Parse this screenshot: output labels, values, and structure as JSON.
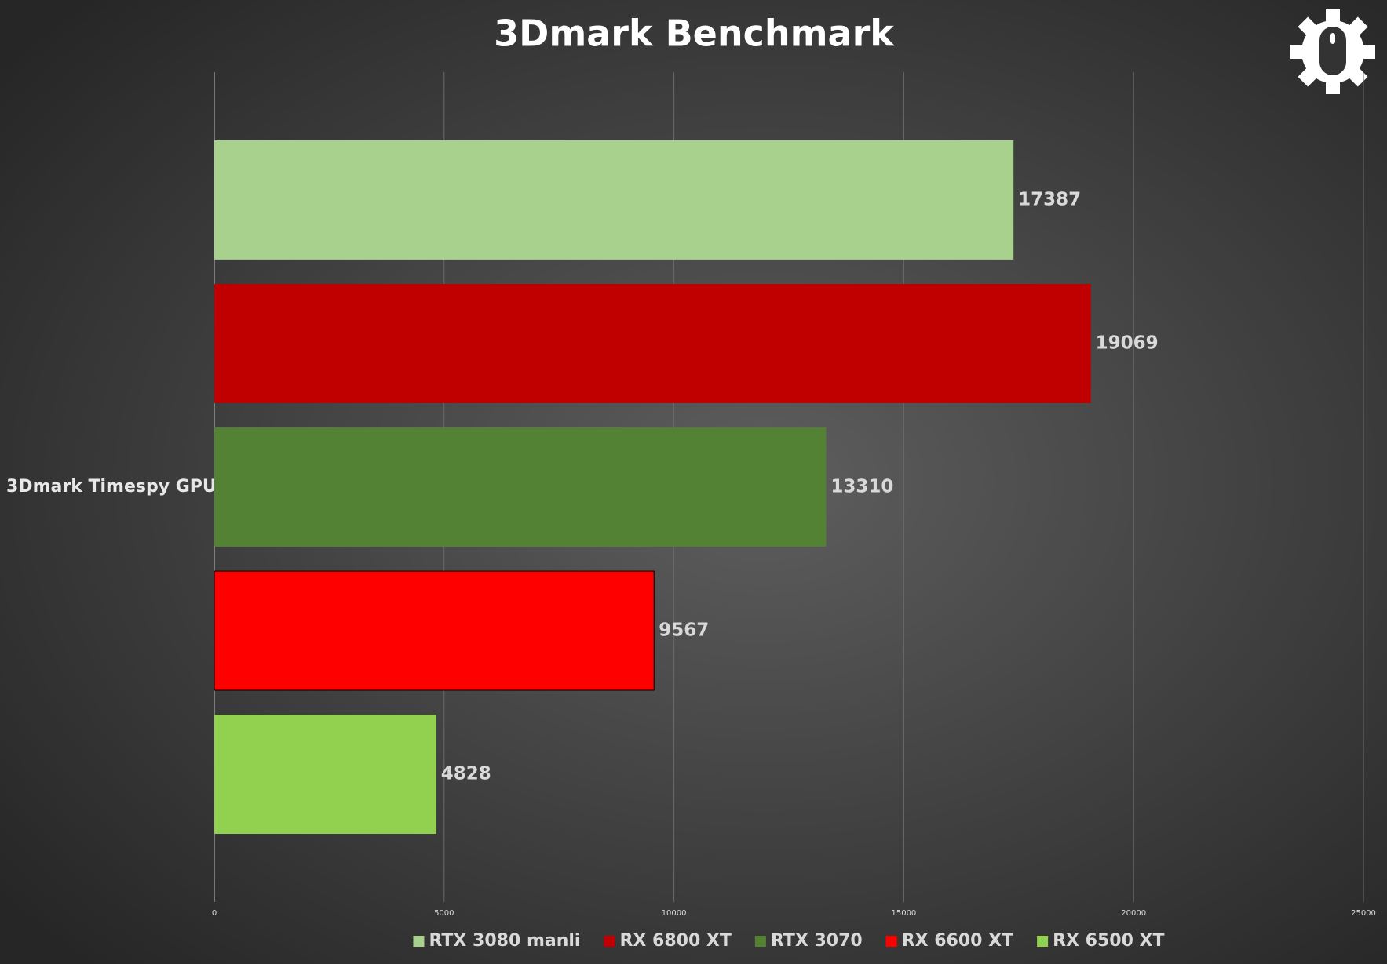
{
  "chart_data": {
    "type": "bar",
    "orientation": "horizontal",
    "title": "3Dmark Benchmark",
    "categories": [
      "3Dmark Timespy GPU"
    ],
    "series": [
      {
        "name": "RTX 3080 manli",
        "color": "#a9d18e",
        "values": [
          17387
        ]
      },
      {
        "name": "RX 6800 XT",
        "color": "#c00000",
        "values": [
          19069
        ]
      },
      {
        "name": "RTX 3070",
        "color": "#548235",
        "values": [
          13310
        ]
      },
      {
        "name": "RX 6600 XT",
        "color": "#ff0000",
        "values": [
          9567
        ]
      },
      {
        "name": "RX 6500 XT",
        "color": "#92d050",
        "values": [
          4828
        ]
      }
    ],
    "xlim": [
      0,
      25000
    ],
    "xticks": [
      0,
      5000,
      10000,
      15000,
      20000,
      25000
    ],
    "grid": true,
    "legend": "bottom"
  }
}
